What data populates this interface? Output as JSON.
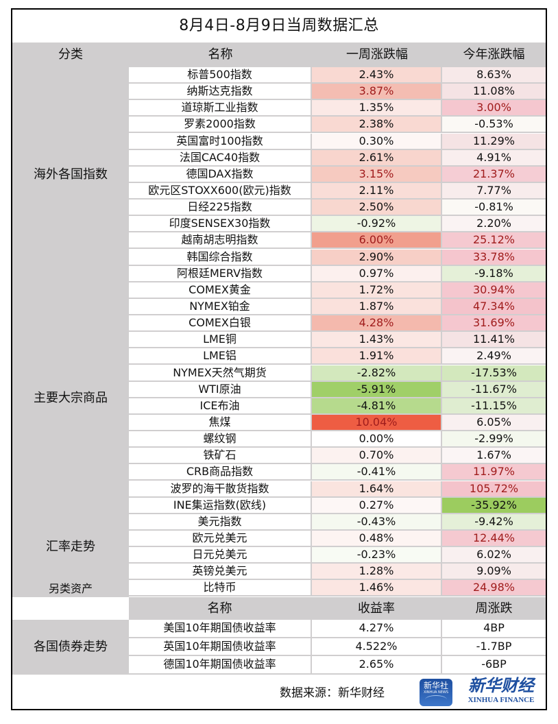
{
  "title": "8月4日-8月9日当周数据汇总",
  "header": {
    "category": "分类",
    "name": "名称",
    "weekly_change": "一周涨跌幅",
    "ytd_change": "今年涨跌幅"
  },
  "categories": [
    {
      "label": "海外各国指数",
      "rows": 13
    },
    {
      "label": "主要大宗商品",
      "rows": 14
    },
    {
      "label": "汇率走势",
      "rows": 4
    },
    {
      "label": "另类资产",
      "rows": 1
    }
  ],
  "rows": [
    {
      "name": "标普500指数",
      "weekly": "2.43%",
      "ytd": "8.63%",
      "weekly_bg": "#f9d9d2",
      "ytd_bg": "#f7e9e9",
      "weekly_red": false,
      "ytd_red": false
    },
    {
      "name": "纳斯达克指数",
      "weekly": "3.87%",
      "ytd": "11.08%",
      "weekly_bg": "#f4bdb2",
      "ytd_bg": "#f5e3e4",
      "weekly_red": true,
      "ytd_red": false
    },
    {
      "name": "道琼斯工业指数",
      "weekly": "1.35%",
      "ytd": "3.00%",
      "weekly_bg": "#fbe9e6",
      "ytd_bg": "#f5c7cf",
      "weekly_red": false,
      "ytd_red": true
    },
    {
      "name": "罗素2000指数",
      "weekly": "2.38%",
      "ytd": "-0.53%",
      "weekly_bg": "#f9d9d2",
      "ytd_bg": "#fbf9f5",
      "weekly_red": false,
      "ytd_red": false
    },
    {
      "name": "英国富时100指数",
      "weekly": "0.30%",
      "ytd": "11.29%",
      "weekly_bg": "#fdf6f5",
      "ytd_bg": "#f5e3e4",
      "weekly_red": false,
      "ytd_red": false
    },
    {
      "name": "法国CAC40指数",
      "weekly": "2.61%",
      "ytd": "4.91%",
      "weekly_bg": "#f8d5cd",
      "ytd_bg": "#f9eeee",
      "weekly_red": false,
      "ytd_red": false
    },
    {
      "name": "德国DAX指数",
      "weekly": "3.15%",
      "ytd": "21.37%",
      "weekly_bg": "#f6cac0",
      "ytd_bg": "#f5cdd4",
      "weekly_red": true,
      "ytd_red": true
    },
    {
      "name": "欧元区STOXX600(欧元)指数",
      "weekly": "2.11%",
      "ytd": "7.77%",
      "weekly_bg": "#f9ddd7",
      "ytd_bg": "#f8ecec",
      "weekly_red": false,
      "ytd_red": false
    },
    {
      "name": "日经225指数",
      "weekly": "2.50%",
      "ytd": "-0.81%",
      "weekly_bg": "#f8d7cf",
      "ytd_bg": "#fbf9f5",
      "weekly_red": false,
      "ytd_red": false
    },
    {
      "name": "印度SENSEX30指数",
      "weekly": "-0.92%",
      "ytd": "2.20%",
      "weekly_bg": "#eef5e4",
      "ytd_bg": "#faf3f3",
      "weekly_red": false,
      "ytd_red": false
    },
    {
      "name": "越南胡志明指数",
      "weekly": "6.00%",
      "ytd": "25.12%",
      "weekly_bg": "#f19f8d",
      "ytd_bg": "#f5c9d0",
      "weekly_red": true,
      "ytd_red": true
    },
    {
      "name": "韩国综合指数",
      "weekly": "2.90%",
      "ytd": "33.78%",
      "weekly_bg": "#f7cfc6",
      "ytd_bg": "#f5c6ce",
      "weekly_red": false,
      "ytd_red": true
    },
    {
      "name": "阿根廷MERV指数",
      "weekly": "0.97%",
      "ytd": "-9.18%",
      "weekly_bg": "#fcf0ee",
      "ytd_bg": "#e5f0d8",
      "weekly_red": false,
      "ytd_red": false
    },
    {
      "name": "COMEX黄金",
      "weekly": "1.72%",
      "ytd": "30.94%",
      "weekly_bg": "#fae3de",
      "ytd_bg": "#f5c7cf",
      "weekly_red": false,
      "ytd_red": true
    },
    {
      "name": "NYMEX铂金",
      "weekly": "1.87%",
      "ytd": "47.34%",
      "weekly_bg": "#fae1dc",
      "ytd_bg": "#f4c3cb",
      "weekly_red": false,
      "ytd_red": true
    },
    {
      "name": "COMEX白银",
      "weekly": "4.28%",
      "ytd": "31.69%",
      "weekly_bg": "#f4b9ad",
      "ytd_bg": "#f5c7cf",
      "weekly_red": true,
      "ytd_red": true
    },
    {
      "name": "LME铜",
      "weekly": "1.43%",
      "ytd": "11.41%",
      "weekly_bg": "#fbe7e3",
      "ytd_bg": "#f5e3e4",
      "weekly_red": false,
      "ytd_red": false
    },
    {
      "name": "LME铝",
      "weekly": "1.91%",
      "ytd": "2.49%",
      "weekly_bg": "#fae0db",
      "ytd_bg": "#faf3f3",
      "weekly_red": false,
      "ytd_red": false
    },
    {
      "name": "NYMEX天然气期货",
      "weekly": "-2.82%",
      "ytd": "-17.53%",
      "weekly_bg": "#d3e8bd",
      "ytd_bg": "#d3e8bd",
      "weekly_red": false,
      "ytd_red": false
    },
    {
      "name": "WTI原油",
      "weekly": "-5.91%",
      "ytd": "-11.67%",
      "weekly_bg": "#a0cf68",
      "ytd_bg": "#dfedd0",
      "weekly_red": false,
      "ytd_red": false
    },
    {
      "name": "ICE布油",
      "weekly": "-4.81%",
      "ytd": "-11.15%",
      "weekly_bg": "#b6da8d",
      "ytd_bg": "#dfedd0",
      "weekly_red": false,
      "ytd_red": false
    },
    {
      "name": "焦煤",
      "weekly": "10.04%",
      "ytd": "6.05%",
      "weekly_bg": "#ee5d43",
      "ytd_bg": "#f9f0f0",
      "weekly_red": true,
      "ytd_red": false
    },
    {
      "name": "螺纹钢",
      "weekly": "0.00%",
      "ytd": "-2.99%",
      "weekly_bg": "#ffffff",
      "ytd_bg": "#f4f8ee",
      "weekly_red": false,
      "ytd_red": false
    },
    {
      "name": "铁矿石",
      "weekly": "0.70%",
      "ytd": "1.67%",
      "weekly_bg": "#fcf2f0",
      "ytd_bg": "#fbf5f5",
      "weekly_red": false,
      "ytd_red": false
    },
    {
      "name": "CRB商品指数",
      "weekly": "-0.41%",
      "ytd": "11.97%",
      "weekly_bg": "#f5f9f0",
      "ytd_bg": "#f5c9d0",
      "weekly_red": false,
      "ytd_red": true
    },
    {
      "name": "波罗的海干散货指数",
      "weekly": "1.64%",
      "ytd": "105.72%",
      "weekly_bg": "#fae4df",
      "ytd_bg": "#f4c3cb",
      "weekly_red": false,
      "ytd_red": true
    },
    {
      "name": "INE集运指数(欧线)",
      "weekly": "0.27%",
      "ytd": "-35.92%",
      "weekly_bg": "#fdf7f6",
      "ytd_bg": "#9ccc5f",
      "weekly_red": false,
      "ytd_red": false
    },
    {
      "name": "美元指数",
      "weekly": "-0.43%",
      "ytd": "-9.42%",
      "weekly_bg": "#f5f9f0",
      "ytd_bg": "#e5f0d8",
      "weekly_red": false,
      "ytd_red": false
    },
    {
      "name": "欧元兑美元",
      "weekly": "0.48%",
      "ytd": "12.44%",
      "weekly_bg": "#fdf4f2",
      "ytd_bg": "#f5c9d0",
      "weekly_red": false,
      "ytd_red": true
    },
    {
      "name": "日元兑美元",
      "weekly": "-0.23%",
      "ytd": "6.02%",
      "weekly_bg": "#f8fbf4",
      "ytd_bg": "#f9f0f0",
      "weekly_red": false,
      "ytd_red": false
    },
    {
      "name": "英镑兑美元",
      "weekly": "1.28%",
      "ytd": "9.09%",
      "weekly_bg": "#fbe9e6",
      "ytd_bg": "#f7ebeb",
      "weekly_red": false,
      "ytd_red": false
    },
    {
      "name": "比特币",
      "weekly": "1.46%",
      "ytd": "24.98%",
      "weekly_bg": "#fbe6e2",
      "ytd_bg": "#f5c9d0",
      "weekly_red": false,
      "ytd_red": true
    }
  ],
  "bonds": {
    "category": "各国债券走势",
    "header": {
      "name": "名称",
      "yield": "收益率",
      "weekly": "周涨跌"
    },
    "rows": [
      {
        "name": "美国10年期国债收益率",
        "yield": "4.27%",
        "weekly": "4BP"
      },
      {
        "name": "英国10年期国债收益率",
        "yield": "4.522%",
        "weekly": "-1.7BP"
      },
      {
        "name": "德国10年期国债收益率",
        "yield": "2.65%",
        "weekly": "-6BP"
      }
    ]
  },
  "footer": {
    "source": "数据来源：新华财经",
    "logo_xinhua": {
      "cn": "新华社",
      "en": "XINHUA NEWS"
    },
    "logo_finance": {
      "cn": "新华财经",
      "en": "XINHUA FINANCE"
    }
  },
  "colors": {
    "header_gray": "#d0cecf",
    "red_text": "#a01c1c",
    "brand_blue": "#1e4fa0"
  }
}
